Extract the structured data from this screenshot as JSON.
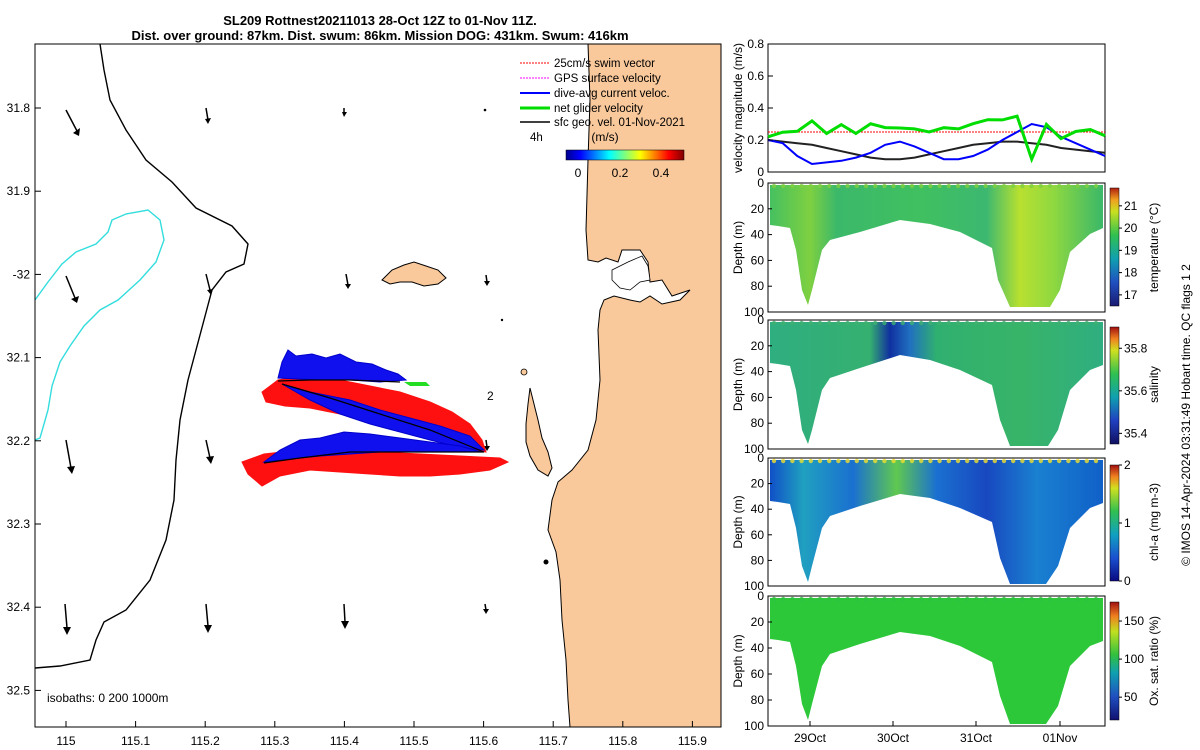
{
  "header": {
    "line1": "SL209 Rottnest20211013 28-Oct 12Z to 01-Nov 11Z.",
    "line2": "Dist. over ground: 87km. Dist. swum: 86km. Mission DOG: 431km. Swum: 416km"
  },
  "map": {
    "lon_ticks": [
      "115",
      "115.1",
      "115.2",
      "115.3",
      "115.4",
      "115.5",
      "115.6",
      "115.7",
      "115.8",
      "115.9"
    ],
    "lat_ticks": [
      "31.8",
      "31.9",
      "-32",
      "32.1",
      "32.2",
      "32.3",
      "32.4",
      "32.5"
    ],
    "legend": [
      {
        "label": "25cm/s swim vector",
        "color": "#ff0000"
      },
      {
        "label": "GPS surface velocity",
        "color": "#ff00ff"
      },
      {
        "label": "dive-avg current veloc.",
        "color": "#0000ff"
      },
      {
        "label": "net glider velocity",
        "color": "#00dd00"
      },
      {
        "label": "sfc geo. vel. 01-Nov-2021",
        "color": "#000000"
      }
    ],
    "interval_label": "4h",
    "colorbar_title": "(m/s)",
    "colorbar_ticks": [
      "0",
      "0.2",
      "0.4"
    ],
    "isobaths": "isobaths: 0   200  1000m",
    "marker_label": "2",
    "colors": {
      "land": "#f9c89b",
      "coast": "#000000",
      "isobath_200": "#000000",
      "isobath_1000": "#33dddd"
    }
  },
  "chart_data": [
    {
      "type": "line",
      "title": "",
      "ylabel": "velocity magnitude (m/s)",
      "ylim": [
        0,
        0.8
      ],
      "yticks": [
        "0",
        "0.2",
        "0.4",
        "0.6",
        "0.8"
      ],
      "x_domain": [
        "28-Oct 12Z",
        "01-Nov 11Z"
      ],
      "series": [
        {
          "color": "#00dd00",
          "values": [
            0.22,
            0.24,
            0.27,
            0.3,
            0.26,
            0.28,
            0.25,
            0.3,
            0.27,
            0.29,
            0.25,
            0.27,
            0.26,
            0.28,
            0.3,
            0.32,
            0.34,
            0.33,
            0.1,
            0.28,
            0.22,
            0.25,
            0.26,
            0.24
          ]
        },
        {
          "color": "#0000ff",
          "values": [
            0.2,
            0.18,
            0.1,
            0.05,
            0.06,
            0.07,
            0.09,
            0.12,
            0.17,
            0.19,
            0.16,
            0.12,
            0.08,
            0.08,
            0.1,
            0.14,
            0.2,
            0.25,
            0.3,
            0.28,
            0.22,
            0.18,
            0.14,
            0.1
          ]
        },
        {
          "color": "#222222",
          "values": [
            0.2,
            0.19,
            0.18,
            0.17,
            0.15,
            0.13,
            0.11,
            0.09,
            0.08,
            0.08,
            0.09,
            0.11,
            0.13,
            0.15,
            0.17,
            0.18,
            0.19,
            0.19,
            0.18,
            0.17,
            0.15,
            0.14,
            0.13,
            0.12
          ]
        },
        {
          "color": "#ff0000",
          "values": [
            0.25,
            0.25,
            0.25,
            0.25,
            0.25,
            0.25,
            0.25,
            0.25,
            0.25,
            0.25,
            0.25,
            0.25,
            0.25,
            0.25,
            0.25,
            0.25,
            0.25,
            0.25,
            0.25,
            0.25,
            0.25,
            0.25,
            0.25,
            0.25
          ]
        }
      ]
    },
    {
      "type": "heatmap",
      "ylabel": "Depth (m)",
      "cbar_label": "temperature (°C)",
      "depth_ticks": [
        "0",
        "20",
        "40",
        "60",
        "80",
        "100"
      ],
      "cbar_ticks": [
        "17",
        "18",
        "19",
        "20",
        "21"
      ],
      "clim": [
        16.5,
        21.8
      ],
      "typical_value": 18.7
    },
    {
      "type": "heatmap",
      "ylabel": "Depth (m)",
      "cbar_label": "salinity",
      "depth_ticks": [
        "0",
        "20",
        "40",
        "60",
        "80",
        "100"
      ],
      "cbar_ticks": [
        "35.4",
        "35.6",
        "35.8"
      ],
      "clim": [
        35.35,
        35.9
      ],
      "typical_value": 35.62
    },
    {
      "type": "heatmap",
      "ylabel": "Depth (m)",
      "cbar_label": "chl-a (mg m-3)",
      "depth_ticks": [
        "0",
        "20",
        "40",
        "60",
        "80",
        "100"
      ],
      "cbar_ticks": [
        "0",
        "1",
        "2"
      ],
      "clim": [
        0,
        2
      ],
      "typical_value": 0.6
    },
    {
      "type": "heatmap",
      "ylabel": "Depth (m)",
      "cbar_label": "Ox. sat. ratio (%)",
      "depth_ticks": [
        "0",
        "20",
        "40",
        "60",
        "80",
        "100"
      ],
      "cbar_ticks": [
        "50",
        "100",
        "150"
      ],
      "clim": [
        20,
        175
      ],
      "typical_value": 103,
      "xticks": [
        "29Oct",
        "30Oct",
        "31Oct",
        "01Nov"
      ]
    }
  ],
  "side_text": "© IMOS 14-Apr-2024 03:31:49 Hobart time. QC flags 1  2"
}
